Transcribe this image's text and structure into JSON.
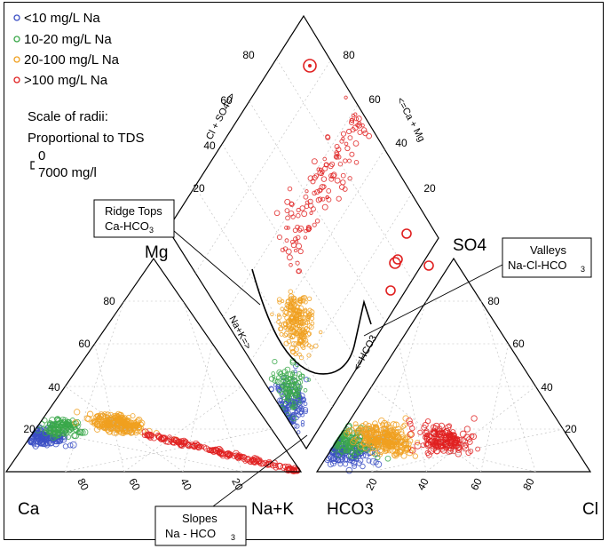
{
  "chart_data": {
    "type": "scatter",
    "subtype": "piper-trilinear",
    "legend": {
      "placement": "top-left",
      "entries": [
        {
          "label": "<10 mg/L Na",
          "color": "#3b4fc4"
        },
        {
          "label": "10-20 mg/L Na",
          "color": "#3aa84a"
        },
        {
          "label": "20-100 mg/L Na",
          "color": "#f0a020"
        },
        {
          "label": ">100 mg/L Na",
          "color": "#e02020"
        }
      ],
      "scale_title_1": "Scale of radii:",
      "scale_title_2": "Proportional to TDS",
      "scale_min": "0",
      "scale_max": "7000 mg/l"
    },
    "corner_labels": {
      "ca": "Ca",
      "nak": "Na+K",
      "hco3": "HCO3",
      "cl": "Cl",
      "mg": "Mg",
      "so4": "SO4"
    },
    "axis_labels": {
      "cl_so4": "Cl + SO4=>",
      "ca_mg": "<=Ca + Mg",
      "na_k": "Na+K=>",
      "hco3_arrow": "<=HCO3"
    },
    "ticks": {
      "values": [
        "20",
        "40",
        "60",
        "80"
      ]
    },
    "annotations": [
      {
        "line1": "Ridge Tops",
        "line2": "Ca-HCO",
        "sub": "3"
      },
      {
        "line1": "Valleys",
        "line2": "Na-Cl-HCO",
        "sub": "3"
      },
      {
        "line1": "Slopes",
        "line2": "Na - HCO",
        "sub": "3"
      }
    ],
    "series": [
      {
        "name": "<10 mg/L Na",
        "color": "#3b4fc4",
        "cation": {
          "ca_pct": [
            78,
            80,
            82,
            75,
            84,
            77,
            79,
            81,
            73,
            83
          ],
          "mg_pct": [
            18,
            16,
            14,
            20,
            12,
            19,
            17,
            15,
            22,
            13
          ]
        },
        "anion": {
          "hco3_pct": [
            90,
            85,
            80,
            88,
            82,
            78,
            92,
            86
          ],
          "so4_pct": [
            6,
            10,
            14,
            8,
            12,
            16,
            4,
            9
          ]
        }
      },
      {
        "name": "10-20 mg/L Na",
        "color": "#3aa84a",
        "cation": {
          "ca_pct": [
            72,
            70,
            74,
            68,
            76,
            71,
            69
          ],
          "mg_pct": [
            20,
            22,
            18,
            24,
            16,
            21,
            23
          ]
        },
        "anion": {
          "hco3_pct": [
            84,
            80,
            76,
            88,
            72,
            82
          ],
          "so4_pct": [
            10,
            14,
            18,
            8,
            20,
            12
          ]
        }
      },
      {
        "name": "20-100 mg/L Na",
        "color": "#f0a020",
        "cation": {
          "ca_pct": [
            60,
            55,
            50,
            45,
            65,
            58,
            52,
            48,
            40,
            62,
            35,
            42
          ],
          "mg_pct": [
            25,
            26,
            24,
            22,
            23,
            27,
            21,
            20,
            18,
            28,
            15,
            19
          ]
        },
        "anion": {
          "hco3_pct": [
            78,
            70,
            65,
            72,
            60,
            68,
            75,
            62,
            55,
            74
          ],
          "so4_pct": [
            12,
            16,
            20,
            10,
            22,
            14,
            9,
            18,
            25,
            11
          ]
        }
      },
      {
        "name": ">100 mg/L Na",
        "color": "#e02020",
        "cation": {
          "ca_pct": [
            25,
            20,
            15,
            10,
            8,
            5,
            30,
            12,
            18,
            3
          ],
          "mg_pct": [
            10,
            8,
            6,
            4,
            3,
            2,
            12,
            5,
            7,
            1
          ]
        },
        "anion": {
          "hco3_pct": [
            60,
            50,
            45,
            40,
            55,
            35,
            48,
            30
          ],
          "so4_pct": [
            10,
            14,
            18,
            12,
            8,
            20,
            15,
            25
          ]
        }
      }
    ]
  }
}
